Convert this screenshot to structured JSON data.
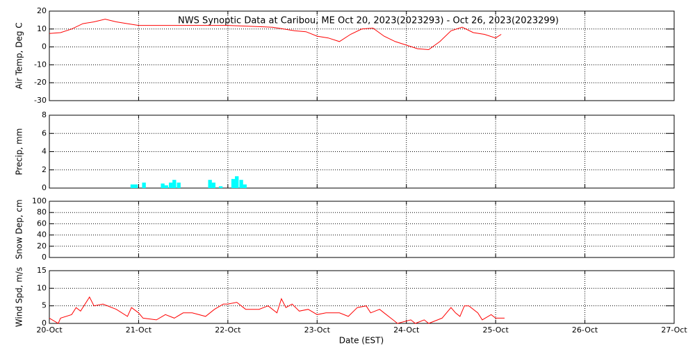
{
  "chart_data": [
    {
      "type": "line",
      "title": "NWS Synoptic Data at Caribou, ME   Oct 20, 2023(2023293) - Oct 26, 2023(2023299)",
      "ylabel": "Air Temp, Deg C",
      "ylim": [
        -30,
        20
      ],
      "yticks": [
        -30,
        -20,
        -10,
        0,
        10,
        20
      ],
      "grid": true,
      "color": "#ff0000",
      "x": [
        0,
        0.125,
        0.25,
        0.375,
        0.5,
        0.625,
        0.75,
        0.875,
        1.0,
        1.25,
        1.5,
        1.75,
        2.0,
        2.25,
        2.5,
        2.625,
        2.75,
        2.875,
        3.0,
        3.125,
        3.25,
        3.375,
        3.5,
        3.625,
        3.75,
        3.875,
        4.0,
        4.125,
        4.25,
        4.375,
        4.5,
        4.625,
        4.75,
        4.875,
        5.0,
        5.0625
      ],
      "values": [
        7.5,
        8,
        10,
        13,
        14,
        15.5,
        14,
        13,
        12,
        12,
        12,
        12,
        12,
        11.5,
        11,
        10,
        9,
        8.5,
        6,
        5,
        3,
        7,
        10,
        10.5,
        6,
        3,
        1,
        -1,
        -1.5,
        3,
        9,
        11,
        8,
        7,
        5,
        7
      ]
    },
    {
      "type": "bar",
      "ylabel": "Precip, mm",
      "ylim": [
        0,
        8
      ],
      "yticks": [
        0,
        2,
        4,
        6,
        8
      ],
      "grid": true,
      "color": "#00ffff",
      "x": [
        0.93,
        0.97,
        1.06,
        1.27,
        1.31,
        1.36,
        1.4,
        1.45,
        1.8,
        1.84,
        1.92,
        2.06,
        2.1,
        2.15,
        2.19
      ],
      "values": [
        0.4,
        0.4,
        0.6,
        0.5,
        0.3,
        0.6,
        0.9,
        0.6,
        0.9,
        0.6,
        0.2,
        1.0,
        1.3,
        0.9,
        0.4
      ]
    },
    {
      "type": "line",
      "ylabel": "Snow Dep, cm",
      "ylim": [
        0,
        100
      ],
      "yticks": [
        0,
        20,
        40,
        60,
        80,
        100
      ],
      "grid": true
    },
    {
      "type": "line",
      "ylabel": "Wind Spd, m/s",
      "ylim": [
        0,
        15
      ],
      "yticks": [
        0,
        5,
        10,
        15
      ],
      "grid": true,
      "color": "#ff0000",
      "xlabel": "Date (EST)",
      "xlim": [
        0,
        7
      ],
      "xticks": [
        {
          "value": 0,
          "label": "20-Oct"
        },
        {
          "value": 1,
          "label": "21-Oct"
        },
        {
          "value": 2,
          "label": "22-Oct"
        },
        {
          "value": 3,
          "label": "23-Oct"
        },
        {
          "value": 4,
          "label": "24-Oct"
        },
        {
          "value": 5,
          "label": "25-Oct"
        },
        {
          "value": 6,
          "label": "26-Oct"
        },
        {
          "value": 7,
          "label": "27-Oct"
        }
      ],
      "x": [
        0,
        0.1,
        0.125,
        0.25,
        0.3,
        0.35,
        0.45,
        0.5,
        0.6,
        0.75,
        0.875,
        0.92,
        1.0,
        1.05,
        1.2,
        1.3,
        1.4,
        1.5,
        1.6,
        1.75,
        1.85,
        1.95,
        2.0,
        2.1,
        2.2,
        2.35,
        2.45,
        2.55,
        2.6,
        2.65,
        2.72,
        2.8,
        2.9,
        3.0,
        3.1,
        3.25,
        3.35,
        3.45,
        3.55,
        3.6,
        3.7,
        3.75,
        3.85,
        3.9,
        4.05,
        4.1,
        4.2,
        4.25,
        4.4,
        4.5,
        4.55,
        4.6,
        4.65,
        4.7,
        4.8,
        4.85,
        4.95,
        5.0,
        5.1
      ],
      "values": [
        1.5,
        0,
        1.5,
        2.5,
        4.5,
        3.5,
        7.5,
        5,
        5.5,
        4,
        2,
        4.5,
        3,
        1.5,
        1,
        2.5,
        1.5,
        3,
        3,
        2,
        4,
        5.5,
        5.5,
        6,
        4,
        4,
        5,
        3,
        7,
        4.5,
        5.5,
        3.5,
        4,
        2.5,
        3,
        3,
        2,
        4.5,
        5,
        3,
        4,
        3,
        1,
        0,
        1,
        0,
        1,
        0,
        1.5,
        4.5,
        3,
        2,
        5,
        5,
        3,
        1,
        2.5,
        1.5,
        1.5
      ]
    }
  ]
}
